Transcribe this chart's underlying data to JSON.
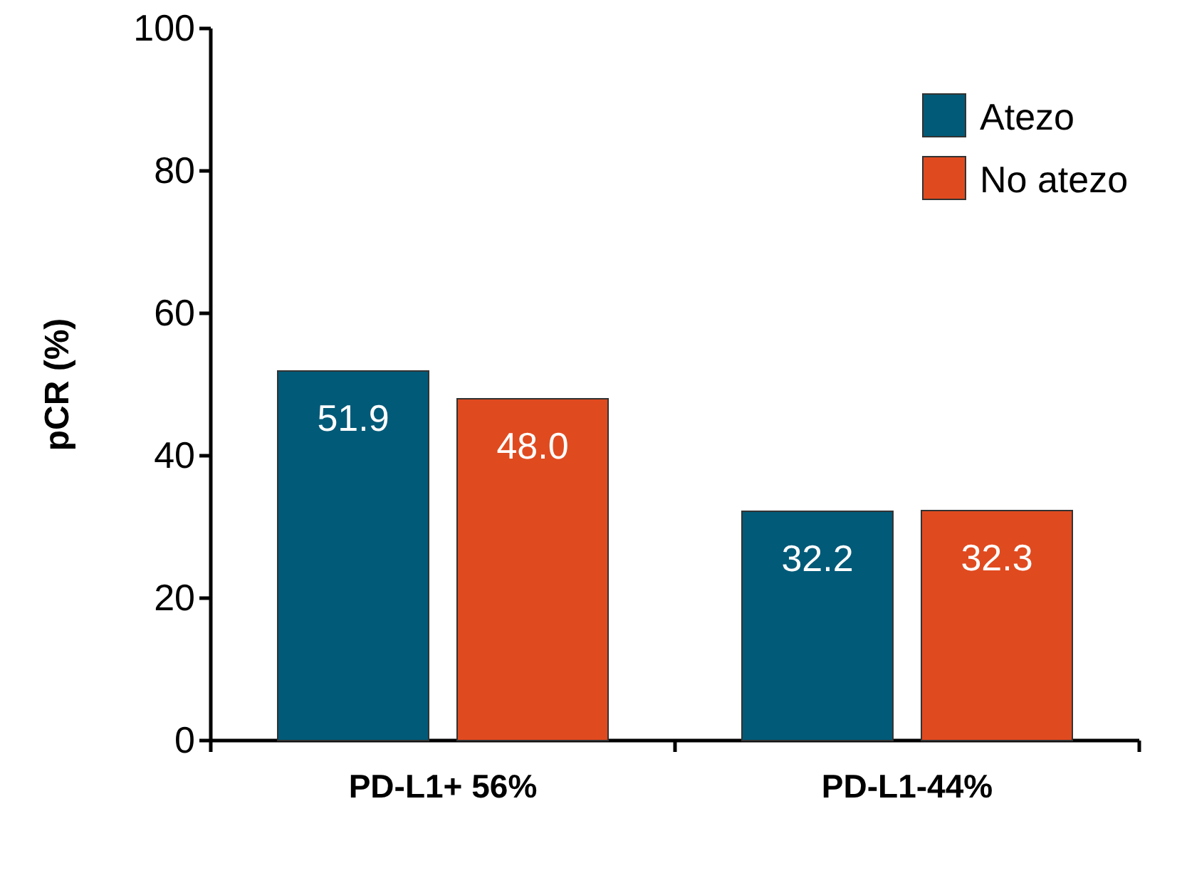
{
  "chart_data": {
    "type": "bar",
    "ylabel": "pCR (%)",
    "categories": [
      "PD-L1+ 56%",
      "PD-L1-44%"
    ],
    "series": [
      {
        "name": "Atezo",
        "color": "#005a78",
        "values": [
          51.9,
          32.2
        ]
      },
      {
        "name": "No atezo",
        "color": "#e04a1f",
        "values": [
          48.0,
          32.3
        ]
      }
    ],
    "value_labels": [
      [
        "51.9",
        "32.2"
      ],
      [
        "48.0",
        "32.3"
      ]
    ],
    "ylim": [
      0,
      100
    ],
    "yticks": [
      0,
      20,
      40,
      60,
      80,
      100
    ],
    "legend": "top right",
    "grid": false
  }
}
